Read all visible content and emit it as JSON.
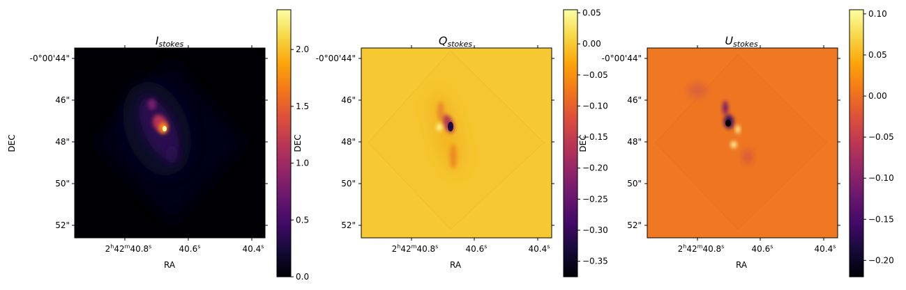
{
  "chart_data": [
    {
      "type": "heatmap",
      "title_main": "I",
      "title_sub": "stokes",
      "xlabel": "RA",
      "ylabel": "DEC",
      "x_ticks": [
        {
          "h": "2",
          "m": "42",
          "s": "40.8"
        },
        {
          "s": "40.6"
        },
        {
          "s": "40.4"
        }
      ],
      "y_ticks": [
        "-0°00'44\"",
        "46\"",
        "48\"",
        "50\"",
        "52\""
      ],
      "colormap": "inferno",
      "clim": [
        0.0,
        2.35
      ],
      "colorbar_ticks": [
        "0.0",
        "0.5",
        "1.0",
        "1.5",
        "2.0"
      ],
      "colorbar_values": [
        0.0,
        0.5,
        1.0,
        1.5,
        2.0
      ]
    },
    {
      "type": "heatmap",
      "title_main": "Q",
      "title_sub": "stokes",
      "xlabel": "RA",
      "ylabel": "DEC",
      "x_ticks": [
        {
          "h": "2",
          "m": "42",
          "s": "40.8"
        },
        {
          "s": "40.6"
        },
        {
          "s": "40.4"
        }
      ],
      "y_ticks": [
        "-0°00'44\"",
        "46\"",
        "48\"",
        "50\"",
        "52\""
      ],
      "colormap": "inferno",
      "clim": [
        -0.375,
        0.055
      ],
      "colorbar_ticks": [
        "0.05",
        "0.00",
        "−0.05",
        "−0.10",
        "−0.15",
        "−0.20",
        "−0.25",
        "−0.30",
        "−0.35"
      ],
      "colorbar_values": [
        0.05,
        0.0,
        -0.05,
        -0.1,
        -0.15,
        -0.2,
        -0.25,
        -0.3,
        -0.35
      ]
    },
    {
      "type": "heatmap",
      "title_main": "U",
      "title_sub": "stokes",
      "xlabel": "RA",
      "ylabel": "DEC",
      "x_ticks": [
        {
          "h": "2",
          "m": "42",
          "s": "40.8"
        },
        {
          "s": "40.6"
        },
        {
          "s": "40.4"
        }
      ],
      "y_ticks": [
        "-0°00'44\"",
        "46\"",
        "48\"",
        "50\"",
        "52\""
      ],
      "colormap": "inferno",
      "clim": [
        -0.22,
        0.105
      ],
      "colorbar_ticks": [
        "0.10",
        "0.05",
        "0.00",
        "−0.05",
        "−0.10",
        "−0.15",
        "−0.20"
      ],
      "colorbar_values": [
        0.1,
        0.05,
        0.0,
        -0.05,
        -0.1,
        -0.15,
        -0.2
      ]
    }
  ]
}
